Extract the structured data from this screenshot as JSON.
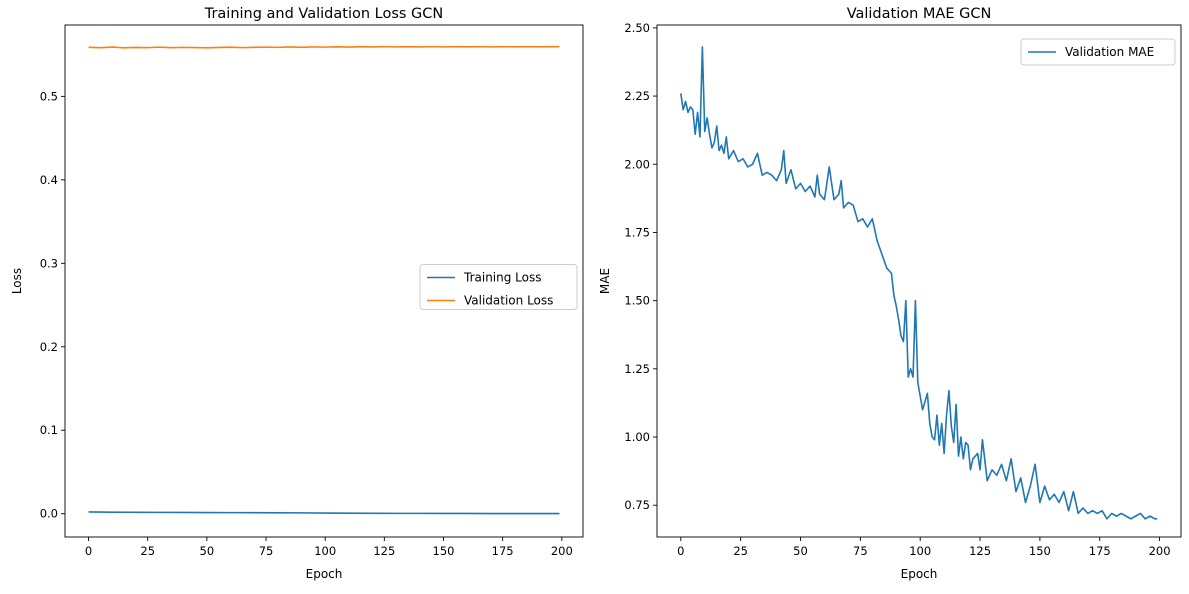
{
  "chart_data": [
    {
      "type": "line",
      "title": "Training and Validation Loss GCN",
      "xlabel": "Epoch",
      "ylabel": "Loss",
      "xlim": [
        -9.95,
        208.95
      ],
      "ylim": [
        -0.0279,
        0.5855
      ],
      "xticks": [
        0,
        25,
        50,
        75,
        100,
        125,
        150,
        175,
        200
      ],
      "xtick_labels": [
        "0",
        "25",
        "50",
        "75",
        "100",
        "125",
        "150",
        "175",
        "200"
      ],
      "yticks": [
        0.0,
        0.1,
        0.2,
        0.3,
        0.4,
        0.5
      ],
      "ytick_labels": [
        "0.0",
        "0.1",
        "0.2",
        "0.3",
        "0.4",
        "0.5"
      ],
      "grid": false,
      "legend_position": "center-right",
      "series": [
        {
          "name": "Training Loss",
          "color": "#1f77b4",
          "x": [
            0,
            10,
            20,
            30,
            40,
            50,
            60,
            70,
            80,
            90,
            100,
            110,
            120,
            130,
            140,
            150,
            160,
            170,
            180,
            190,
            199
          ],
          "y": [
            0.0021,
            0.0018,
            0.0017,
            0.0016,
            0.0015,
            0.0014,
            0.0013,
            0.0012,
            0.0011,
            0.001,
            0.0008,
            0.0006,
            0.0005,
            0.0004,
            0.0004,
            0.0003,
            0.0003,
            0.0002,
            0.0002,
            0.0002,
            0.0002
          ]
        },
        {
          "name": "Validation Loss",
          "color": "#ff7f0e",
          "x": [
            0,
            5,
            10,
            15,
            20,
            25,
            30,
            35,
            40,
            45,
            50,
            55,
            60,
            65,
            70,
            75,
            80,
            85,
            90,
            95,
            100,
            105,
            110,
            115,
            120,
            125,
            130,
            135,
            140,
            145,
            150,
            155,
            160,
            165,
            170,
            175,
            180,
            185,
            190,
            195,
            199
          ],
          "y": [
            0.5588,
            0.5583,
            0.5591,
            0.5582,
            0.5586,
            0.5584,
            0.559,
            0.5583,
            0.5587,
            0.5585,
            0.5582,
            0.5586,
            0.5589,
            0.5584,
            0.5588,
            0.559,
            0.5587,
            0.5592,
            0.5588,
            0.5593,
            0.559,
            0.5594,
            0.5591,
            0.5595,
            0.5592,
            0.5596,
            0.5593,
            0.5595,
            0.5592,
            0.5596,
            0.5593,
            0.5595,
            0.5594,
            0.5596,
            0.5593,
            0.5595,
            0.5594,
            0.5596,
            0.5594,
            0.5596,
            0.5595
          ]
        }
      ]
    },
    {
      "type": "line",
      "title": "Validation MAE GCN",
      "xlabel": "Epoch",
      "ylabel": "MAE",
      "xlim": [
        -9.95,
        208.95
      ],
      "ylim": [
        0.6335,
        2.5105
      ],
      "xticks": [
        0,
        25,
        50,
        75,
        100,
        125,
        150,
        175,
        200
      ],
      "xtick_labels": [
        "0",
        "25",
        "50",
        "75",
        "100",
        "125",
        "150",
        "175",
        "200"
      ],
      "yticks": [
        0.75,
        1.0,
        1.25,
        1.5,
        1.75,
        2.0,
        2.25,
        2.5
      ],
      "ytick_labels": [
        "0.75",
        "1.00",
        "1.25",
        "1.50",
        "1.75",
        "2.00",
        "2.25",
        "2.50"
      ],
      "grid": false,
      "legend_position": "top-right",
      "series": [
        {
          "name": "Validation MAE",
          "color": "#1f77b4",
          "x": [
            0,
            1,
            2,
            3,
            4,
            5,
            6,
            7,
            8,
            9,
            10,
            11,
            12,
            13,
            14,
            15,
            16,
            17,
            18,
            19,
            20,
            22,
            24,
            26,
            28,
            30,
            32,
            34,
            36,
            38,
            40,
            42,
            43,
            44,
            46,
            48,
            50,
            52,
            54,
            56,
            57,
            58,
            60,
            62,
            64,
            66,
            67,
            68,
            70,
            72,
            74,
            76,
            78,
            80,
            82,
            84,
            86,
            88,
            89,
            90,
            91,
            92,
            93,
            94,
            95,
            96,
            97,
            98,
            99,
            100,
            101,
            102,
            103,
            104,
            105,
            106,
            107,
            108,
            109,
            110,
            111,
            112,
            113,
            114,
            115,
            116,
            117,
            118,
            119,
            120,
            121,
            122,
            124,
            125,
            126,
            128,
            130,
            132,
            134,
            136,
            138,
            140,
            142,
            144,
            146,
            148,
            150,
            152,
            154,
            156,
            158,
            160,
            162,
            164,
            166,
            168,
            170,
            172,
            174,
            176,
            178,
            180,
            182,
            184,
            186,
            188,
            190,
            192,
            194,
            196,
            198,
            199
          ],
          "y": [
            2.26,
            2.2,
            2.23,
            2.19,
            2.21,
            2.2,
            2.11,
            2.19,
            2.1,
            2.43,
            2.12,
            2.17,
            2.11,
            2.06,
            2.08,
            2.14,
            2.05,
            2.07,
            2.04,
            2.1,
            2.02,
            2.05,
            2.01,
            2.02,
            1.99,
            2.0,
            2.04,
            1.96,
            1.97,
            1.96,
            1.94,
            1.98,
            2.05,
            1.93,
            1.98,
            1.91,
            1.93,
            1.9,
            1.92,
            1.88,
            1.96,
            1.89,
            1.87,
            1.99,
            1.87,
            1.89,
            1.94,
            1.84,
            1.86,
            1.85,
            1.79,
            1.8,
            1.77,
            1.8,
            1.72,
            1.67,
            1.62,
            1.6,
            1.52,
            1.48,
            1.43,
            1.37,
            1.35,
            1.5,
            1.22,
            1.25,
            1.22,
            1.5,
            1.2,
            1.15,
            1.1,
            1.13,
            1.16,
            1.05,
            1.0,
            0.99,
            1.08,
            0.97,
            1.05,
            0.94,
            1.08,
            1.17,
            1.04,
            0.98,
            1.12,
            0.93,
            1.0,
            0.92,
            0.98,
            0.97,
            0.88,
            0.92,
            0.94,
            0.88,
            0.99,
            0.84,
            0.88,
            0.86,
            0.9,
            0.84,
            0.92,
            0.8,
            0.85,
            0.76,
            0.82,
            0.9,
            0.76,
            0.82,
            0.77,
            0.79,
            0.76,
            0.8,
            0.73,
            0.8,
            0.72,
            0.74,
            0.72,
            0.73,
            0.72,
            0.73,
            0.7,
            0.72,
            0.71,
            0.72,
            0.71,
            0.7,
            0.71,
            0.72,
            0.7,
            0.71,
            0.7,
            0.7
          ]
        }
      ]
    }
  ]
}
